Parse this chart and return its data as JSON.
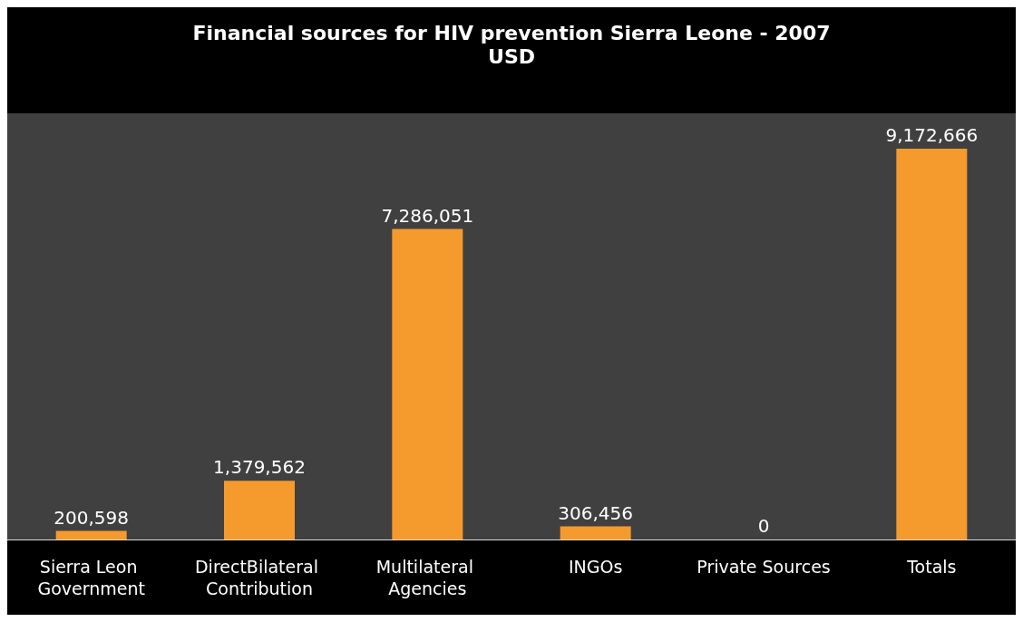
{
  "chart_data": {
    "type": "bar",
    "title": "Financial sources for HIV prevention Sierra Leone - 2007",
    "subtitle": "USD",
    "categories": [
      "Sierra Leon Government",
      "DirectBilateral Contribution",
      "Multilateral Agencies",
      "INGOs",
      "Private Sources",
      "Totals"
    ],
    "values": [
      200598,
      1379562,
      7286051,
      306456,
      0,
      9172666
    ],
    "value_labels": [
      "200,598",
      "1,379,562",
      "7,286,051",
      "306,456",
      "0",
      "9,172,666"
    ],
    "color": "#f59a2c"
  }
}
